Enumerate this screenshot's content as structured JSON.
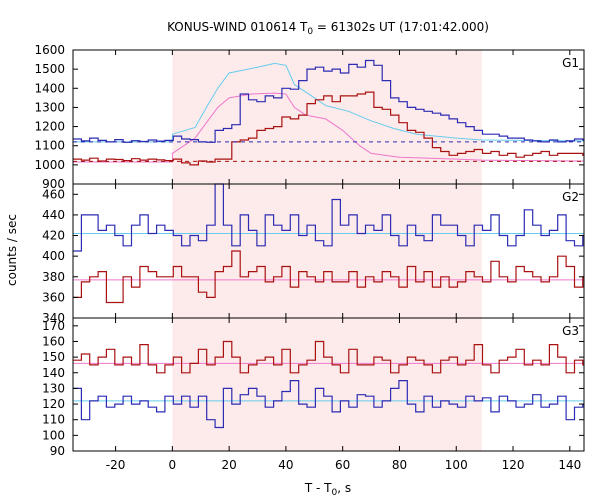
{
  "chart_data": {
    "type": "line",
    "title": {
      "prefix": "KONUS-WIND 010614 T",
      "sub": "0",
      "suffix": " = 61302s UT (17:01:42.000)"
    },
    "xlabel": {
      "prefix": "T - T",
      "sub": "0",
      "suffix": ", s"
    },
    "ylabel": "counts / sec",
    "xlim": [
      -35,
      145
    ],
    "xticks": [
      -20,
      0,
      20,
      40,
      60,
      80,
      100,
      120,
      140
    ],
    "shaded_interval": [
      0,
      109
    ],
    "colors": {
      "blue": "#2b2bb3",
      "red": "#aa1111",
      "cyan": "#66ccee",
      "pink": "#ee77cc",
      "shade": "#fdeaea"
    },
    "panels": [
      {
        "name": "G1",
        "ylim": [
          900,
          1600
        ],
        "yticks": [
          900,
          1000,
          1100,
          1200,
          1300,
          1400,
          1500,
          1600
        ],
        "bin_start": -35,
        "bin_width": 2.944,
        "blue_series": [
          1135,
          1125,
          1140,
          1128,
          1120,
          1132,
          1118,
          1126,
          1122,
          1130,
          1124,
          1128,
          1150,
          1135,
          1132,
          1120,
          1118,
          1180,
          1190,
          1210,
          1370,
          1340,
          1330,
          1360,
          1350,
          1400,
          1395,
          1440,
          1500,
          1510,
          1490,
          1500,
          1480,
          1525,
          1510,
          1545,
          1520,
          1440,
          1350,
          1330,
          1300,
          1290,
          1280,
          1270,
          1260,
          1240,
          1220,
          1200,
          1180,
          1160,
          1160,
          1150,
          1140,
          1140,
          1130,
          1125,
          1120,
          1130,
          1120,
          1125,
          1135,
          1130,
          1120,
          1125,
          1130,
          1140,
          1130,
          1120,
          1115,
          1125,
          1110,
          1120,
          1115,
          1125,
          1110,
          1120,
          1130,
          1115,
          1120,
          1100,
          1140,
          1125,
          1130,
          1120,
          1110,
          1120,
          1130,
          1115,
          1110,
          1120,
          1130,
          1115,
          1110,
          1120,
          1130,
          1120,
          1110,
          1120,
          1130,
          1110,
          1125,
          1150,
          1140
        ],
        "red_series": [
          1030,
          1025,
          1035,
          1020,
          1030,
          1028,
          1022,
          1032,
          1025,
          1030,
          1026,
          1022,
          1030,
          1010,
          1000,
          1020,
          1015,
          1030,
          1030,
          1120,
          1130,
          1140,
          1180,
          1190,
          1200,
          1250,
          1240,
          1260,
          1320,
          1340,
          1360,
          1330,
          1360,
          1360,
          1370,
          1380,
          1300,
          1290,
          1260,
          1220,
          1180,
          1170,
          1140,
          1090,
          1070,
          1050,
          1060,
          1070,
          1080,
          1060,
          1070,
          1050,
          1060,
          1040,
          1050,
          1060,
          1070,
          1050,
          1060,
          1060,
          1060,
          1050,
          1040,
          1050,
          1060,
          1030,
          1050,
          1060,
          1040,
          1050,
          1030,
          1040,
          1050,
          1030,
          1040,
          1020,
          1040,
          1030,
          1020,
          1040,
          1030,
          1050,
          1020,
          1030,
          1010,
          1020,
          1030,
          1020,
          1020,
          1010,
          1030,
          1040,
          1020,
          1010,
          1020,
          1030,
          1040,
          1020,
          1030,
          1010,
          1020,
          1010,
          1020,
          1030
        ],
        "cyan_model": [
          [
            -35,
            1120
          ],
          [
            0,
            1120
          ],
          [
            0,
            1160
          ],
          [
            8,
            1195
          ],
          [
            12,
            1300
          ],
          [
            16,
            1400
          ],
          [
            20,
            1480
          ],
          [
            25,
            1495
          ],
          [
            30,
            1510
          ],
          [
            36,
            1530
          ],
          [
            40,
            1520
          ],
          [
            43,
            1420
          ],
          [
            47,
            1380
          ],
          [
            54,
            1310
          ],
          [
            62,
            1280
          ],
          [
            70,
            1230
          ],
          [
            78,
            1190
          ],
          [
            86,
            1160
          ],
          [
            100,
            1140
          ],
          [
            109,
            1130
          ],
          [
            145,
            1125
          ]
        ],
        "pink_model": [
          [
            -35,
            1015
          ],
          [
            0,
            1015
          ],
          [
            0,
            1060
          ],
          [
            8,
            1140
          ],
          [
            12,
            1220
          ],
          [
            16,
            1300
          ],
          [
            20,
            1350
          ],
          [
            28,
            1370
          ],
          [
            36,
            1375
          ],
          [
            40,
            1370
          ],
          [
            43,
            1300
          ],
          [
            47,
            1260
          ],
          [
            54,
            1240
          ],
          [
            60,
            1180
          ],
          [
            66,
            1100
          ],
          [
            70,
            1060
          ],
          [
            80,
            1040
          ],
          [
            100,
            1030
          ],
          [
            109,
            1025
          ],
          [
            145,
            1020
          ]
        ],
        "blue_background": 1120,
        "red_background": 1018
      },
      {
        "name": "G2",
        "ylim": [
          340,
          470
        ],
        "yticks": [
          340,
          360,
          380,
          400,
          420,
          440,
          460
        ],
        "bin_start": -35,
        "bin_width": 2.944,
        "blue_series": [
          405,
          440,
          440,
          425,
          430,
          420,
          410,
          430,
          440,
          422,
          430,
          425,
          420,
          410,
          420,
          415,
          430,
          470,
          430,
          410,
          440,
          425,
          410,
          440,
          430,
          425,
          440,
          420,
          430,
          415,
          410,
          455,
          430,
          440,
          422,
          430,
          425,
          440,
          420,
          410,
          430,
          420,
          415,
          440,
          430,
          430,
          420,
          410,
          430,
          425,
          440,
          420,
          410,
          420,
          445,
          430,
          420,
          425,
          440,
          415,
          410,
          420,
          430,
          440,
          420,
          410,
          450,
          430,
          420,
          415,
          425,
          430,
          440,
          420,
          415,
          425,
          410,
          430,
          440,
          420,
          430,
          415,
          420,
          425,
          410,
          415,
          410,
          430,
          455,
          435,
          415,
          440,
          425,
          425,
          420,
          440,
          440,
          430,
          440,
          420,
          425,
          415
        ],
        "red_series": [
          360,
          375,
          380,
          385,
          355,
          355,
          380,
          370,
          390,
          385,
          380,
          380,
          390,
          380,
          380,
          365,
          360,
          385,
          390,
          405,
          380,
          385,
          390,
          375,
          380,
          390,
          370,
          385,
          380,
          375,
          385,
          375,
          375,
          385,
          370,
          380,
          375,
          385,
          380,
          370,
          390,
          375,
          385,
          370,
          380,
          370,
          375,
          385,
          380,
          375,
          395,
          380,
          375,
          390,
          385,
          380,
          375,
          380,
          400,
          390,
          370,
          380,
          380,
          385,
          385,
          370,
          380,
          385,
          375,
          385,
          380,
          375,
          390,
          385,
          380,
          395,
          385,
          375,
          390,
          370,
          385,
          380,
          375,
          385,
          380,
          375,
          380,
          385,
          375,
          380,
          385,
          390,
          375,
          385,
          380,
          375,
          385,
          380,
          380,
          375,
          385,
          380,
          375
        ],
        "cyan_model": [
          [
            -35,
            422
          ],
          [
            145,
            422
          ]
        ],
        "pink_model": [
          [
            -35,
            377
          ],
          [
            145,
            377
          ]
        ]
      },
      {
        "name": "G3",
        "ylim": [
          90,
          175
        ],
        "yticks": [
          90,
          100,
          110,
          120,
          130,
          140,
          150,
          160,
          170
        ],
        "bin_start": -35,
        "bin_width": 2.944,
        "blue_series": [
          130,
          110,
          122,
          125,
          118,
          120,
          125,
          120,
          122,
          118,
          115,
          125,
          120,
          125,
          118,
          125,
          110,
          105,
          130,
          120,
          126,
          130,
          125,
          118,
          122,
          128,
          135,
          120,
          118,
          130,
          125,
          115,
          122,
          118,
          126,
          125,
          118,
          122,
          130,
          135,
          120,
          115,
          125,
          118,
          122,
          120,
          118,
          125,
          122,
          124,
          115,
          125,
          122,
          118,
          120,
          126,
          118,
          120,
          125,
          110,
          118,
          120,
          125,
          122,
          118,
          125,
          120,
          115,
          122,
          118,
          120,
          125,
          115,
          128,
          122,
          120,
          118,
          130,
          125,
          118,
          122,
          120,
          115,
          122,
          118,
          120,
          125,
          128,
          122,
          130,
          118,
          125,
          122,
          110,
          120,
          118,
          125,
          120,
          115,
          122,
          118,
          108
        ],
        "red_series": [
          148,
          152,
          145,
          150,
          155,
          145,
          150,
          145,
          158,
          145,
          140,
          145,
          150,
          140,
          146,
          155,
          145,
          150,
          160,
          150,
          140,
          145,
          148,
          150,
          145,
          155,
          140,
          145,
          148,
          160,
          150,
          145,
          140,
          155,
          145,
          145,
          150,
          148,
          140,
          145,
          150,
          148,
          145,
          140,
          148,
          150,
          145,
          148,
          158,
          145,
          140,
          148,
          150,
          155,
          145,
          148,
          145,
          158,
          150,
          140,
          148,
          145,
          150,
          148,
          160,
          145,
          150,
          148,
          145,
          140,
          150,
          158,
          148,
          145,
          150,
          148,
          145,
          148,
          150,
          140,
          145,
          148,
          150,
          145,
          148,
          150,
          145,
          140,
          155,
          150,
          145,
          148,
          150,
          155,
          140,
          148,
          145,
          150,
          148,
          145,
          160,
          150,
          135
        ],
        "cyan_model": [
          [
            -35,
            122
          ],
          [
            145,
            122
          ]
        ],
        "pink_model": [
          [
            -35,
            146
          ],
          [
            145,
            146
          ]
        ]
      }
    ]
  }
}
